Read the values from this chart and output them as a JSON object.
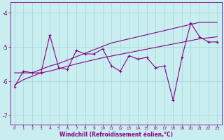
{
  "x": [
    0,
    1,
    2,
    3,
    4,
    5,
    6,
    7,
    8,
    9,
    10,
    11,
    12,
    13,
    14,
    15,
    16,
    17,
    18,
    19,
    20,
    21,
    22,
    23
  ],
  "y_main": [
    -6.15,
    -5.7,
    -5.75,
    -5.75,
    -4.65,
    -5.6,
    -5.65,
    -5.1,
    -5.2,
    -5.2,
    -5.05,
    -5.55,
    -5.7,
    -5.25,
    -5.35,
    -5.3,
    -5.6,
    -5.55,
    -6.55,
    -5.3,
    -4.3,
    -4.7,
    -4.85,
    -4.85
  ],
  "y_upper": [
    -5.75,
    -5.75,
    -5.75,
    -5.65,
    -5.55,
    -5.48,
    -5.38,
    -5.28,
    -5.18,
    -5.08,
    -4.98,
    -4.88,
    -4.82,
    -4.76,
    -4.7,
    -4.64,
    -4.58,
    -4.52,
    -4.46,
    -4.4,
    -4.34,
    -4.28,
    -4.28,
    -4.28
  ],
  "y_lower": [
    -6.1,
    -5.95,
    -5.85,
    -5.75,
    -5.7,
    -5.63,
    -5.56,
    -5.49,
    -5.43,
    -5.37,
    -5.31,
    -5.26,
    -5.21,
    -5.16,
    -5.11,
    -5.06,
    -5.01,
    -4.96,
    -4.91,
    -4.86,
    -4.81,
    -4.76,
    -4.73,
    -4.7
  ],
  "background_color": "#c8eef0",
  "grid_color": "#aad8dc",
  "line_color": "#880088",
  "xlabel": "Windchill (Refroidissement éolien,°C)",
  "xlim": [
    -0.5,
    23.5
  ],
  "ylim": [
    -7.25,
    -3.7
  ],
  "yticks": [
    -7,
    -6,
    -5,
    -4
  ],
  "xticks": [
    0,
    1,
    2,
    3,
    4,
    5,
    6,
    7,
    8,
    9,
    10,
    11,
    12,
    13,
    14,
    15,
    16,
    17,
    18,
    19,
    20,
    21,
    22,
    23
  ]
}
